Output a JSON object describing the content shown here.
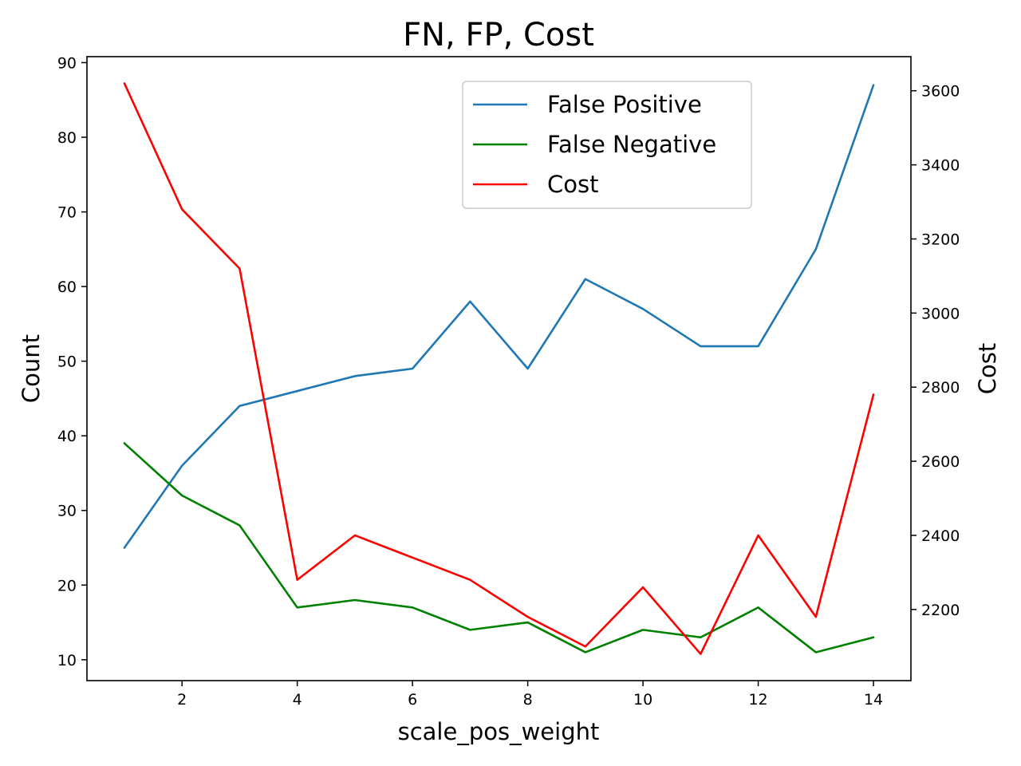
{
  "chart_data": {
    "type": "line",
    "title": "FN, FP, Cost",
    "xlabel": "scale_pos_weight",
    "ylabel": "Count",
    "ylabel_right": "Cost",
    "x": [
      1,
      2,
      3,
      4,
      5,
      6,
      7,
      8,
      9,
      10,
      11,
      12,
      13,
      14
    ],
    "xlim": [
      0.35,
      14.65
    ],
    "xticks": [
      2,
      4,
      6,
      8,
      10,
      12,
      14
    ],
    "ylim": [
      7.2,
      90.8
    ],
    "yticks": [
      10,
      20,
      30,
      40,
      50,
      60,
      70,
      80,
      90
    ],
    "ylim_right": [
      2008,
      3692
    ],
    "yticks_right": [
      2200,
      2400,
      2600,
      2800,
      3000,
      3200,
      3400,
      3600
    ],
    "grid": false,
    "legend_position": "top-right",
    "series": [
      {
        "name": "False Positive",
        "axis": "left",
        "color": "#1f77b4",
        "values": [
          25,
          36,
          44,
          46,
          48,
          49,
          58,
          49,
          61,
          57,
          52,
          52,
          65,
          87
        ]
      },
      {
        "name": "False Negative",
        "axis": "left",
        "color": "#008000",
        "values": [
          39,
          32,
          28,
          17,
          18,
          17,
          14,
          15,
          11,
          14,
          13,
          17,
          11,
          13
        ]
      },
      {
        "name": "Cost",
        "axis": "right",
        "color": "#ff0000",
        "values": [
          3620,
          3280,
          3120,
          2280,
          2400,
          2340,
          2280,
          2180,
          2100,
          2260,
          2080,
          2400,
          2180,
          2780
        ]
      }
    ]
  }
}
